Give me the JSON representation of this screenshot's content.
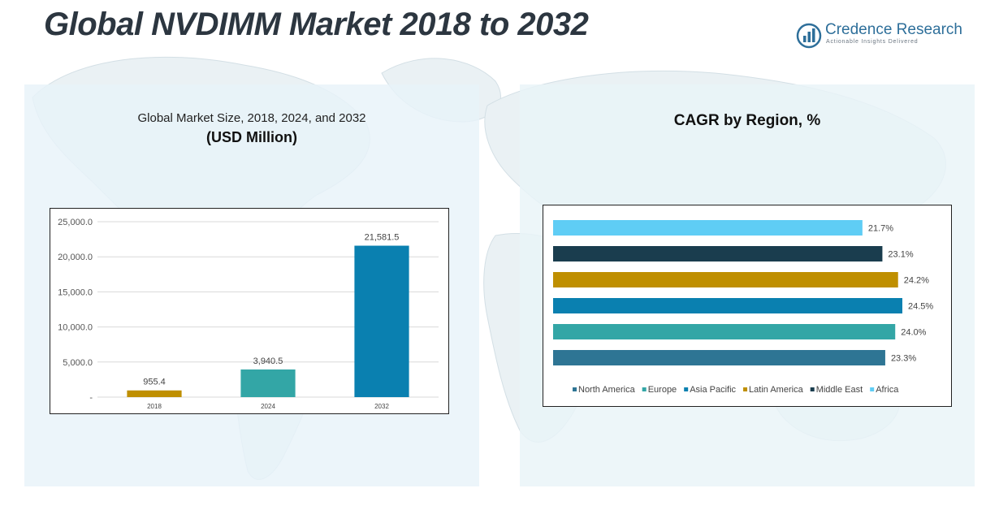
{
  "header": {
    "title": "Global NVDIMM Market 2018 to 2032",
    "logo_name": "Credence Research",
    "logo_tagline": "Actionable Insights Delivered"
  },
  "left_panel": {
    "title": "Global Market Size, 2018, 2024, and 2032",
    "subtitle": "(USD Million)"
  },
  "right_panel": {
    "title": "CAGR by Region, %"
  },
  "chart_data": [
    {
      "type": "bar",
      "title": "Global Market Size, 2018, 2024, and 2032",
      "ylabel": "(USD Million)",
      "categories": [
        "2018",
        "2024",
        "2032"
      ],
      "values": [
        955.4,
        3940.5,
        21581.5
      ],
      "value_labels": [
        "955.4",
        "3,940.5",
        "21,581.5"
      ],
      "colors": [
        "#bf8f00",
        "#33a6a6",
        "#0a80b0"
      ],
      "ylim": [
        0,
        25000
      ],
      "ytick_values": [
        0,
        5000,
        10000,
        15000,
        20000,
        25000
      ],
      "ytick_labels": [
        "-",
        "5,000.0",
        "10,000.0",
        "15,000.0",
        "20,000.0",
        "25,000.0"
      ],
      "grid": true
    },
    {
      "type": "bar",
      "orientation": "horizontal",
      "title": "CAGR by Region, %",
      "series": [
        {
          "name": "North America",
          "value": 23.3,
          "label": "23.3%",
          "color": "#2e7594"
        },
        {
          "name": "Europe",
          "value": 24.0,
          "label": "24.0%",
          "color": "#33a6a6"
        },
        {
          "name": "Asia Pacific",
          "value": 24.5,
          "label": "24.5%",
          "color": "#0a80b0"
        },
        {
          "name": "Latin America",
          "value": 24.2,
          "label": "24.2%",
          "color": "#bf8f00"
        },
        {
          "name": "Middle East",
          "value": 23.1,
          "label": "23.1%",
          "color": "#1a3d4e"
        },
        {
          "name": "Africa",
          "value": 21.7,
          "label": "21.7%",
          "color": "#5fcdf5"
        }
      ],
      "legend": "bottom",
      "grid": false
    }
  ]
}
